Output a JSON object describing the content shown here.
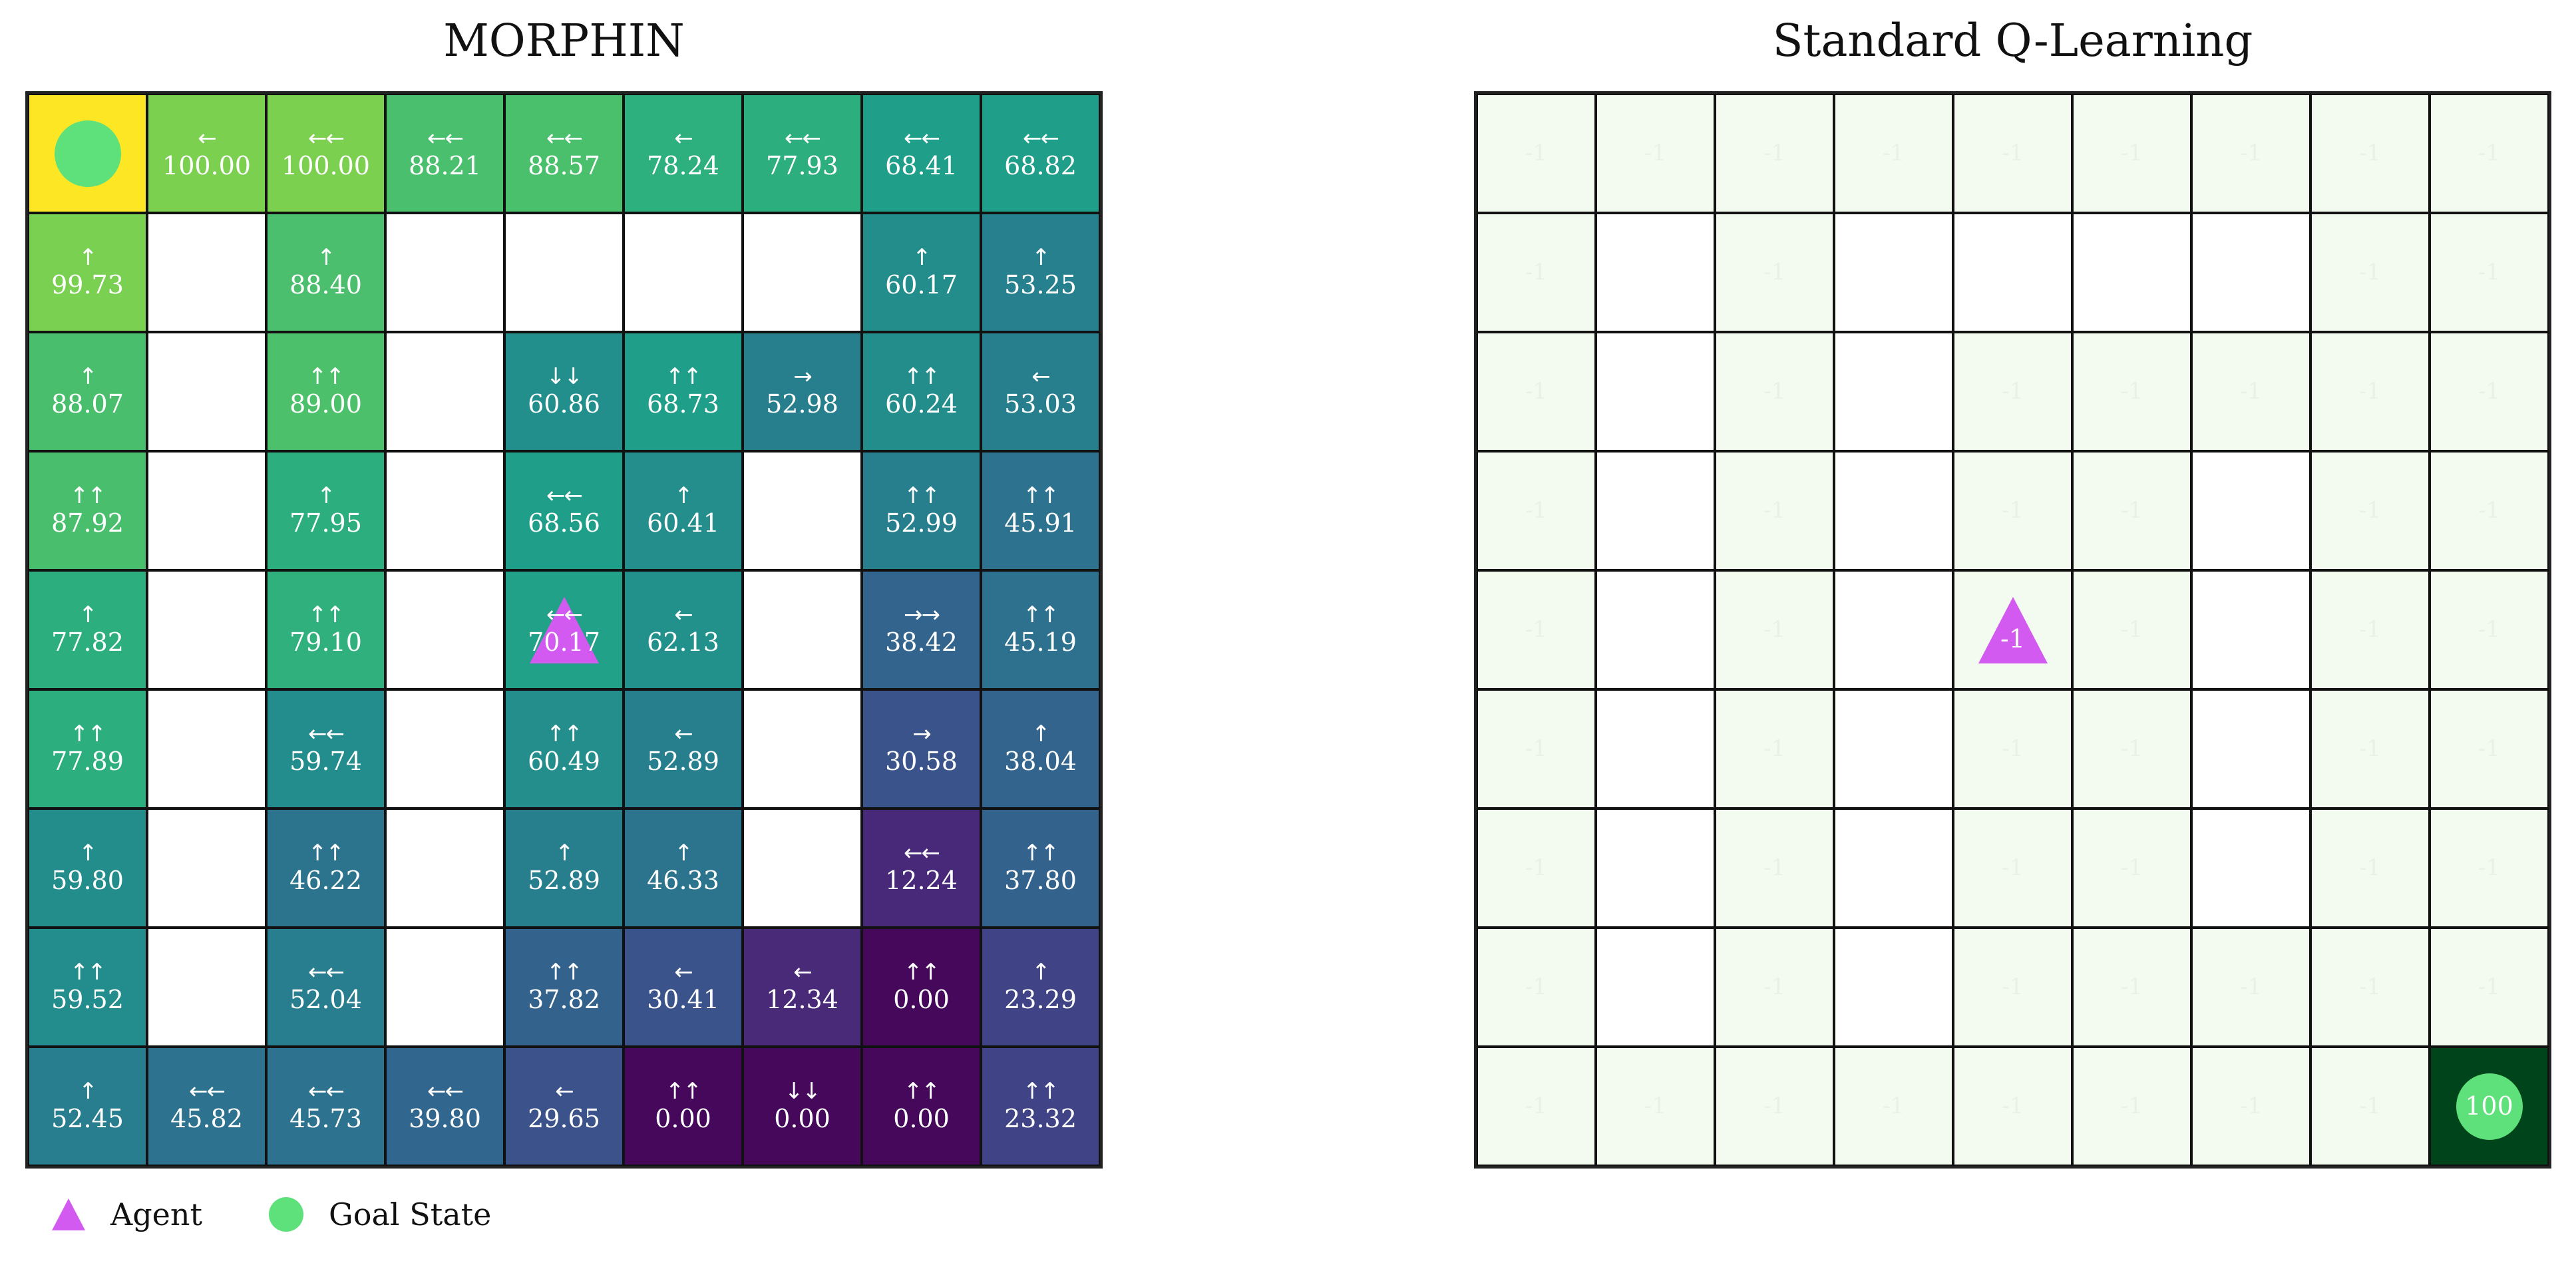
{
  "panels": {
    "left_title": "MORPHIN",
    "right_title": "Standard Q-Learning"
  },
  "legend": {
    "agent_label": "Agent",
    "goal_label": "Goal State"
  },
  "colors": {
    "goal_cell": "#fde725",
    "goal_marker": "#5ee07a",
    "agent_marker": "#d35af0",
    "std_cell": "#f3faf0",
    "std_goal_cell": "#00441b",
    "wall": "#ffffff"
  },
  "morphin": {
    "colormap": "viridis",
    "value_range": [
      0,
      100
    ],
    "rows": [
      [
        {
          "goal": true
        },
        {
          "a": "←",
          "v": "100.00"
        },
        {
          "a": "←←",
          "v": "100.00"
        },
        {
          "a": "←←",
          "v": "88.21"
        },
        {
          "a": "←←",
          "v": "88.57"
        },
        {
          "a": "←",
          "v": "78.24"
        },
        {
          "a": "←←",
          "v": "77.93"
        },
        {
          "a": "←←",
          "v": "68.41"
        },
        {
          "a": "←←",
          "v": "68.82"
        }
      ],
      [
        {
          "a": "↑",
          "v": "99.73"
        },
        {
          "wall": true
        },
        {
          "a": "↑",
          "v": "88.40"
        },
        {
          "wall": true
        },
        {
          "wall": true
        },
        {
          "wall": true
        },
        {
          "wall": true
        },
        {
          "a": "↑",
          "v": "60.17"
        },
        {
          "a": "↑",
          "v": "53.25"
        }
      ],
      [
        {
          "a": "↑",
          "v": "88.07"
        },
        {
          "wall": true
        },
        {
          "a": "↑↑",
          "v": "89.00"
        },
        {
          "wall": true
        },
        {
          "a": "↓↓",
          "v": "60.86"
        },
        {
          "a": "↑↑",
          "v": "68.73"
        },
        {
          "a": "→",
          "v": "52.98"
        },
        {
          "a": "↑↑",
          "v": "60.24"
        },
        {
          "a": "←",
          "v": "53.03"
        }
      ],
      [
        {
          "a": "↑↑",
          "v": "87.92"
        },
        {
          "wall": true
        },
        {
          "a": "↑",
          "v": "77.95"
        },
        {
          "wall": true
        },
        {
          "a": "←←",
          "v": "68.56"
        },
        {
          "a": "↑",
          "v": "60.41"
        },
        {
          "wall": true
        },
        {
          "a": "↑↑",
          "v": "52.99"
        },
        {
          "a": "↑↑",
          "v": "45.91"
        }
      ],
      [
        {
          "a": "↑",
          "v": "77.82"
        },
        {
          "wall": true
        },
        {
          "a": "↑↑",
          "v": "79.10"
        },
        {
          "wall": true
        },
        {
          "a": "←←",
          "v": "70.17",
          "agent": true
        },
        {
          "a": "←",
          "v": "62.13"
        },
        {
          "wall": true
        },
        {
          "a": "→→",
          "v": "38.42"
        },
        {
          "a": "↑↑",
          "v": "45.19"
        }
      ],
      [
        {
          "a": "↑↑",
          "v": "77.89"
        },
        {
          "wall": true
        },
        {
          "a": "←←",
          "v": "59.74"
        },
        {
          "wall": true
        },
        {
          "a": "↑↑",
          "v": "60.49"
        },
        {
          "a": "←",
          "v": "52.89"
        },
        {
          "wall": true
        },
        {
          "a": "→",
          "v": "30.58"
        },
        {
          "a": "↑",
          "v": "38.04"
        }
      ],
      [
        {
          "a": "↑",
          "v": "59.80"
        },
        {
          "wall": true
        },
        {
          "a": "↑↑",
          "v": "46.22"
        },
        {
          "wall": true
        },
        {
          "a": "↑",
          "v": "52.89"
        },
        {
          "a": "↑",
          "v": "46.33"
        },
        {
          "wall": true
        },
        {
          "a": "←←",
          "v": "12.24"
        },
        {
          "a": "↑↑",
          "v": "37.80"
        }
      ],
      [
        {
          "a": "↑↑",
          "v": "59.52"
        },
        {
          "wall": true
        },
        {
          "a": "←←",
          "v": "52.04"
        },
        {
          "wall": true
        },
        {
          "a": "↑↑",
          "v": "37.82"
        },
        {
          "a": "←",
          "v": "30.41"
        },
        {
          "a": "←",
          "v": "12.34"
        },
        {
          "a": "↑↑",
          "v": "0.00"
        },
        {
          "a": "↑",
          "v": "23.29"
        }
      ],
      [
        {
          "a": "↑",
          "v": "52.45"
        },
        {
          "a": "←←",
          "v": "45.82"
        },
        {
          "a": "←←",
          "v": "45.73"
        },
        {
          "a": "←←",
          "v": "39.80"
        },
        {
          "a": "←",
          "v": "29.65"
        },
        {
          "a": "↑↑",
          "v": "0.00"
        },
        {
          "a": "↓↓",
          "v": "0.00"
        },
        {
          "a": "↑↑",
          "v": "0.00"
        },
        {
          "a": "↑↑",
          "v": "23.32"
        }
      ]
    ]
  },
  "standard": {
    "rows": [
      [
        "-1",
        "-1",
        "-1",
        "-1",
        "-1",
        "-1",
        "-1",
        "-1",
        "-1"
      ],
      [
        "-1",
        "W",
        "-1",
        "W",
        "W",
        "W",
        "W",
        "-1",
        "-1"
      ],
      [
        "-1",
        "W",
        "-1",
        "W",
        "-1",
        "-1",
        "-1",
        "-1",
        "-1"
      ],
      [
        "-1",
        "W",
        "-1",
        "W",
        "-1",
        "-1",
        "W",
        "-1",
        "-1"
      ],
      [
        "-1",
        "W",
        "-1",
        "W",
        "A",
        "-1",
        "W",
        "-1",
        "-1"
      ],
      [
        "-1",
        "W",
        "-1",
        "W",
        "-1",
        "-1",
        "W",
        "-1",
        "-1"
      ],
      [
        "-1",
        "W",
        "-1",
        "W",
        "-1",
        "-1",
        "W",
        "-1",
        "-1"
      ],
      [
        "-1",
        "W",
        "-1",
        "W",
        "-1",
        "-1",
        "-1",
        "-1",
        "-1"
      ],
      [
        "-1",
        "-1",
        "-1",
        "-1",
        "-1",
        "-1",
        "-1",
        "-1",
        "G"
      ]
    ],
    "agent_value": "-1",
    "goal_value": "100"
  }
}
